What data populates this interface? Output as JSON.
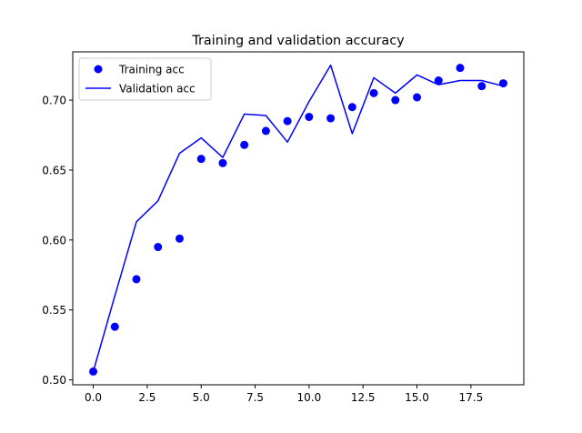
{
  "chart_data": {
    "type": "line",
    "title": "Training and validation accuracy",
    "xlabel": "",
    "ylabel": "",
    "xlim": [
      -0.95,
      19.95
    ],
    "ylim": [
      0.4965,
      0.7345
    ],
    "xticks": [
      0,
      2.5,
      5,
      7.5,
      10,
      12.5,
      15,
      17.5
    ],
    "xtick_labels": [
      "0.0",
      "2.5",
      "5.0",
      "7.5",
      "10.0",
      "12.5",
      "15.0",
      "17.5"
    ],
    "yticks": [
      0.5,
      0.55,
      0.6,
      0.65,
      0.7
    ],
    "ytick_labels": [
      "0.50",
      "0.55",
      "0.60",
      "0.65",
      "0.70"
    ],
    "grid": false,
    "legend_position": "top-left",
    "series": [
      {
        "name": "Training acc",
        "style": "markers",
        "color": "#0000ff",
        "x": [
          0,
          1,
          2,
          3,
          4,
          5,
          6,
          7,
          8,
          9,
          10,
          11,
          12,
          13,
          14,
          15,
          16,
          17,
          18,
          19
        ],
        "values": [
          0.506,
          0.538,
          0.572,
          0.595,
          0.601,
          0.658,
          0.655,
          0.668,
          0.678,
          0.685,
          0.688,
          0.687,
          0.695,
          0.705,
          0.7,
          0.702,
          0.714,
          0.723,
          0.71,
          0.712
        ]
      },
      {
        "name": "Validation acc",
        "style": "line",
        "color": "#0000ff",
        "x": [
          0,
          1,
          2,
          3,
          4,
          5,
          6,
          7,
          8,
          9,
          10,
          11,
          12,
          13,
          14,
          15,
          16,
          17,
          18,
          19
        ],
        "values": [
          0.506,
          0.56,
          0.613,
          0.628,
          0.662,
          0.673,
          0.659,
          0.69,
          0.689,
          0.67,
          0.699,
          0.725,
          0.676,
          0.716,
          0.705,
          0.718,
          0.711,
          0.714,
          0.714,
          0.71
        ]
      }
    ]
  }
}
